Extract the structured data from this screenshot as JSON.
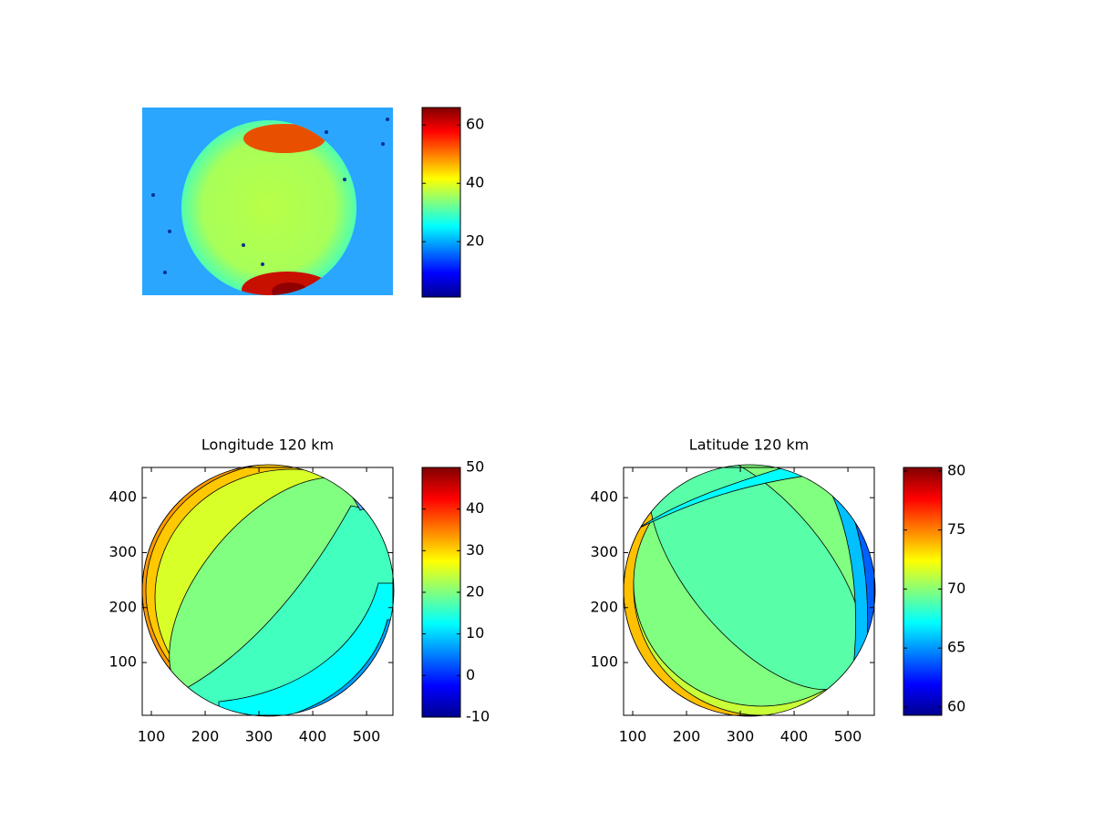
{
  "chart_data": [
    {
      "type": "image",
      "clim": [
        1,
        66
      ],
      "colorbar_ticks": [
        20,
        40,
        60
      ],
      "colormap": "jet"
    },
    {
      "type": "contour",
      "title": "Longitude 120 km",
      "xlim": [
        83,
        549
      ],
      "ylim": [
        4,
        455
      ],
      "xticks": [
        100,
        200,
        300,
        400,
        500
      ],
      "yticks": [
        100,
        200,
        300,
        400
      ],
      "clim": [
        -10,
        50
      ],
      "colorbar_ticks": [
        -10,
        0,
        10,
        20,
        30,
        40,
        50
      ],
      "colormap": "jet"
    },
    {
      "type": "contour",
      "title": "Latitude 120 km",
      "xlim": [
        83,
        549
      ],
      "ylim": [
        4,
        455
      ],
      "xticks": [
        100,
        200,
        300,
        400,
        500
      ],
      "yticks": [
        100,
        200,
        300,
        400
      ],
      "clim": [
        59.3,
        80.3
      ],
      "colorbar_ticks": [
        60,
        65,
        70,
        75,
        80
      ],
      "colormap": "jet"
    }
  ]
}
